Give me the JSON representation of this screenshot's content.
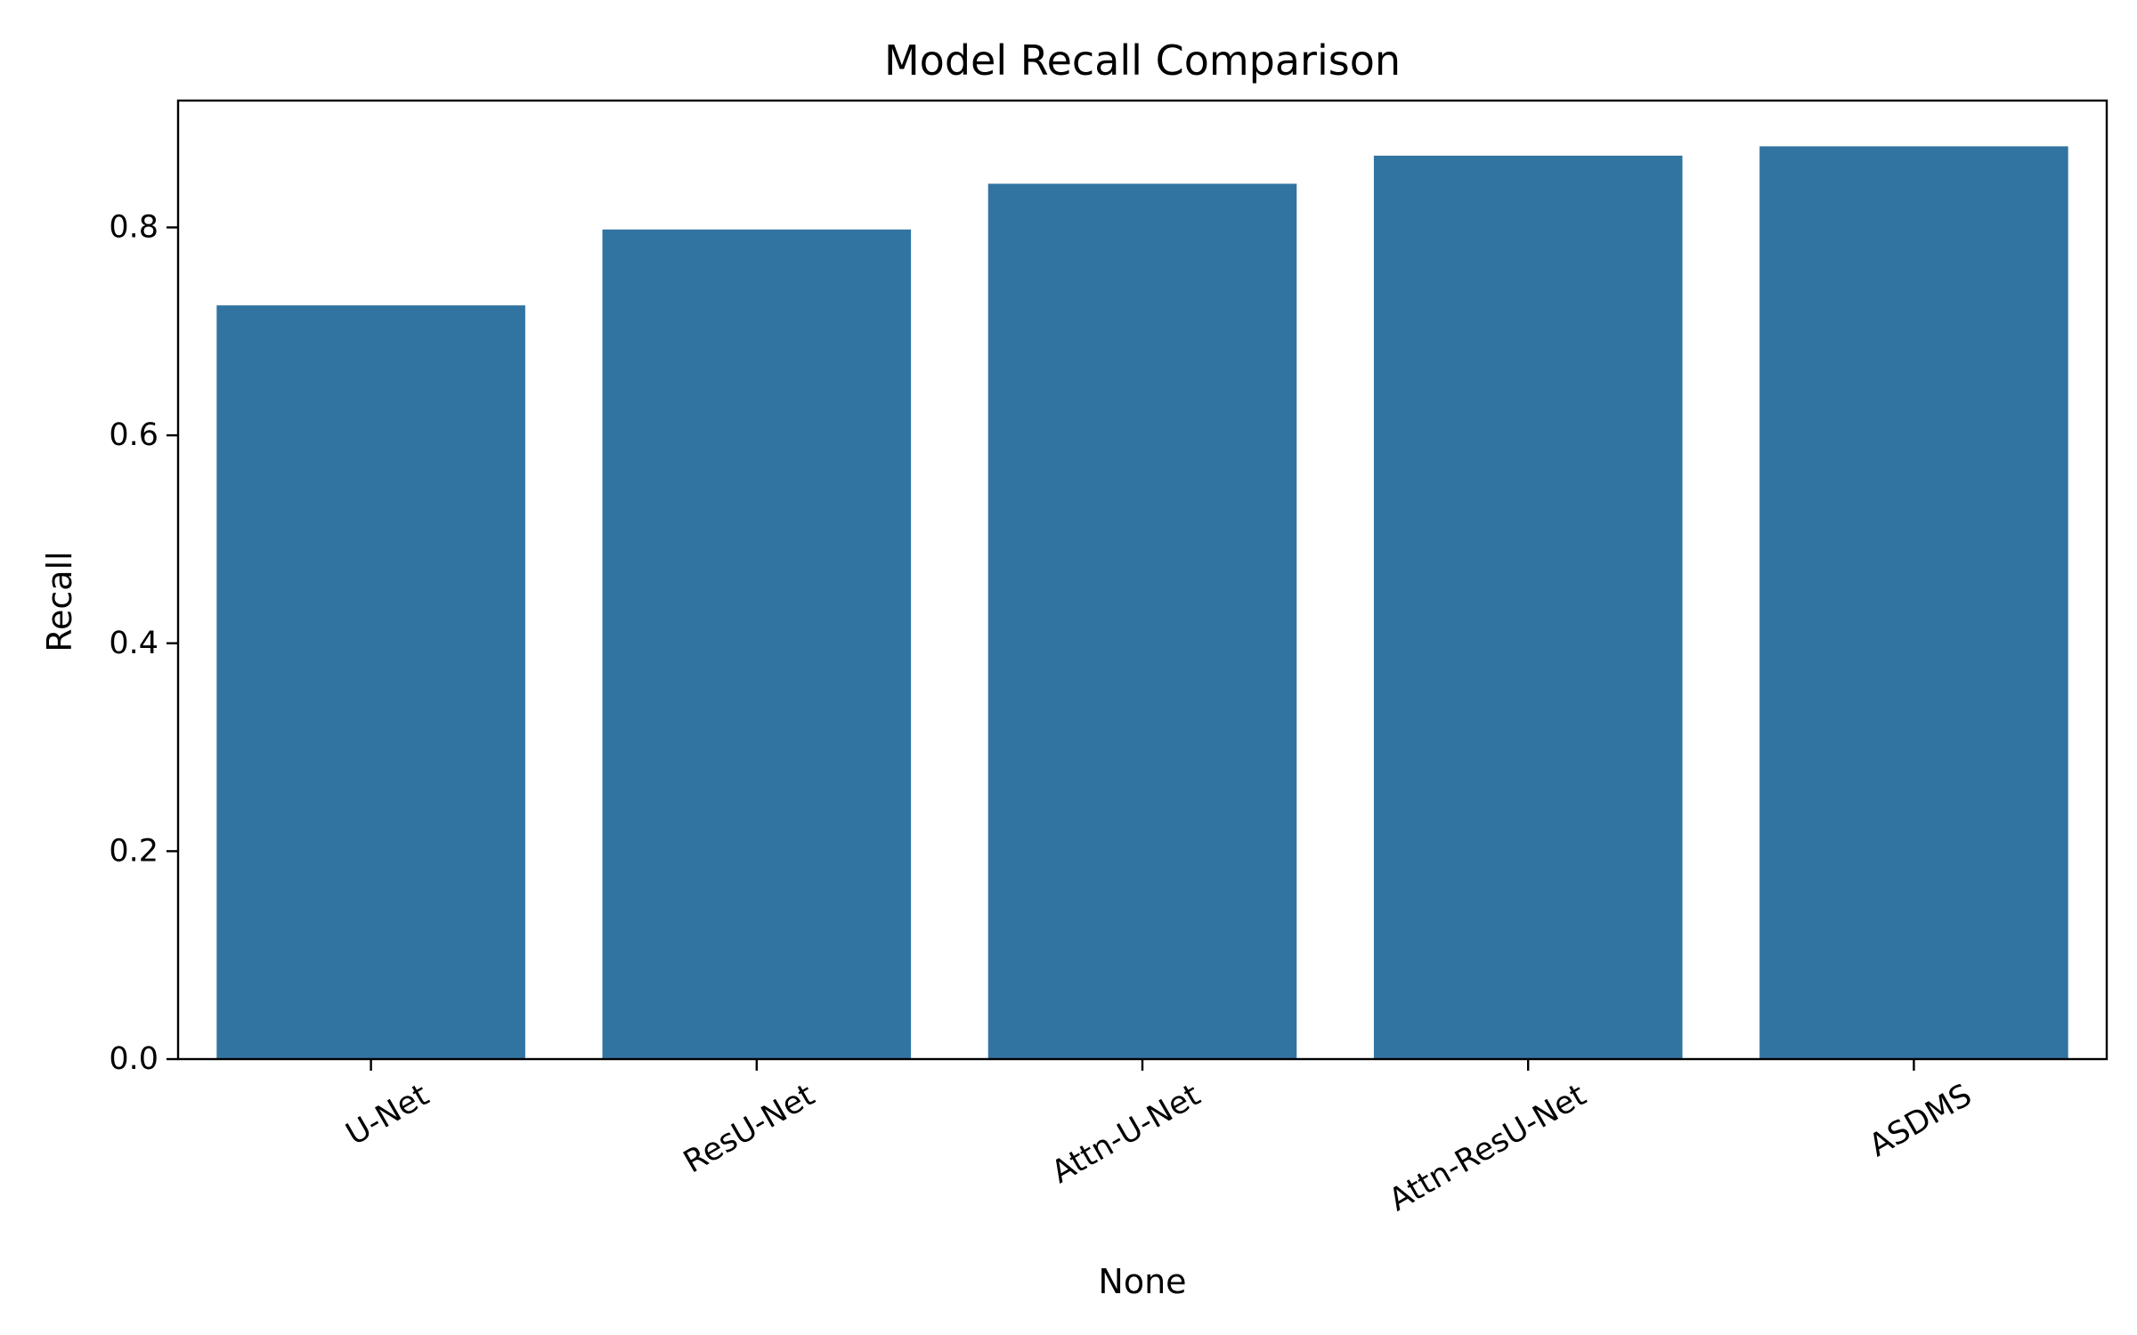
{
  "chart_data": {
    "type": "bar",
    "title": "Model Recall Comparison",
    "xlabel": "None",
    "ylabel": "Recall",
    "categories": [
      "U-Net",
      "ResU-Net",
      "Attn-U-Net",
      "Attn-ResU-Net",
      "ASDMS"
    ],
    "values": [
      0.725,
      0.798,
      0.842,
      0.869,
      0.878
    ],
    "ylim": [
      0,
      0.922
    ],
    "yticks": [
      0.0,
      0.2,
      0.4,
      0.6,
      0.8
    ],
    "ytick_labels": [
      "0.0",
      "0.2",
      "0.4",
      "0.6",
      "0.8"
    ],
    "bar_color": "#3274a1",
    "grid": false,
    "legend": "none"
  }
}
